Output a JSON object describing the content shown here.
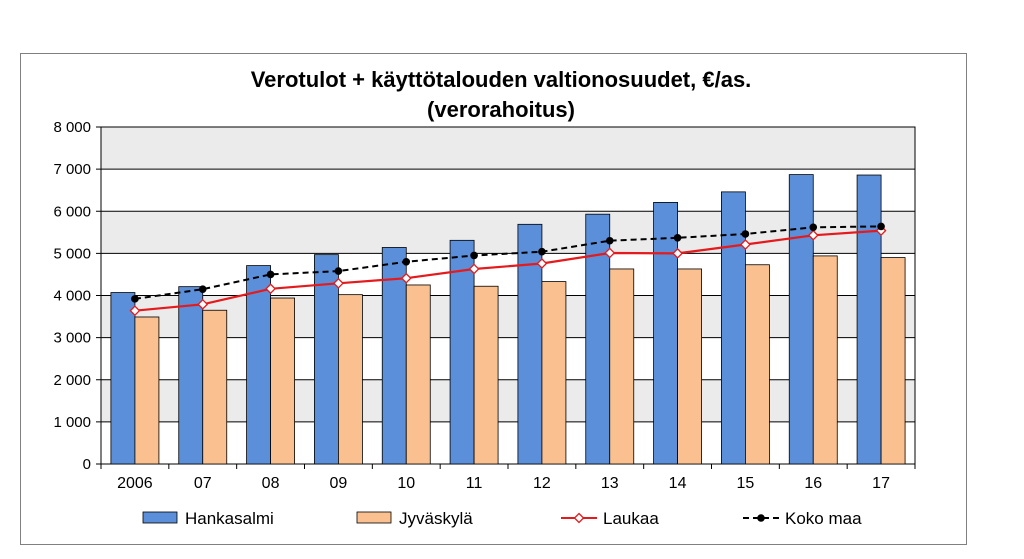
{
  "chart_data": {
    "type": "bar",
    "title": "Verotulot + käyttötalouden valtionosuudet, €/as.",
    "subtitle": "(verorahoitus)",
    "categories": [
      "2006",
      "07",
      "08",
      "09",
      "10",
      "11",
      "12",
      "13",
      "14",
      "15",
      "16",
      "17"
    ],
    "y_ticks": [
      "0",
      "1 000",
      "2 000",
      "3 000",
      "4 000",
      "5 000",
      "6 000",
      "7 000",
      "8 000"
    ],
    "ylim": [
      0,
      8000
    ],
    "grid": true,
    "legend_position": "bottom",
    "series": [
      {
        "name": "Hankasalmi",
        "type": "bar",
        "color": "#5B8FD9",
        "values": [
          4070,
          4210,
          4710,
          4970,
          5140,
          5310,
          5690,
          5930,
          6210,
          6460,
          6870,
          6860
        ]
      },
      {
        "name": "Jyväskylä",
        "type": "bar",
        "color": "#FAC090",
        "values": [
          3490,
          3650,
          3940,
          4020,
          4250,
          4220,
          4330,
          4630,
          4630,
          4730,
          4940,
          4900
        ]
      },
      {
        "name": "Laukaa",
        "type": "line",
        "color": "#E41A1C",
        "marker": "open-diamond",
        "values": [
          3640,
          3790,
          4160,
          4290,
          4410,
          4630,
          4760,
          5010,
          5000,
          5210,
          5430,
          5540
        ]
      },
      {
        "name": "Koko maa",
        "type": "line",
        "color": "#000000",
        "marker": "filled-circle",
        "dashed": true,
        "values": [
          3920,
          4150,
          4500,
          4580,
          4800,
          4950,
          5040,
          5300,
          5370,
          5460,
          5620,
          5640
        ]
      }
    ]
  }
}
